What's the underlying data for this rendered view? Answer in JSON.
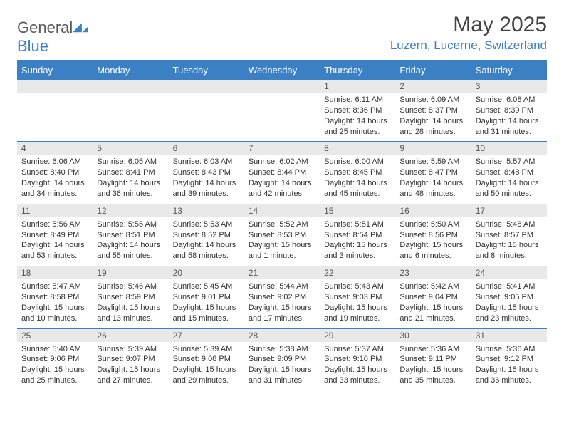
{
  "brand": {
    "name_a": "General",
    "name_b": "Blue"
  },
  "title": "May 2025",
  "location": "Luzern, Lucerne, Switzerland",
  "colors": {
    "accent": "#3b7fc4",
    "header_row_bg": "#3b7fc4",
    "header_row_text": "#ffffff",
    "daynum_bg": "#e9e9e9",
    "text": "#333333",
    "background": "#ffffff"
  },
  "typography": {
    "title_fontsize": 30,
    "location_fontsize": 17,
    "weekday_fontsize": 13,
    "daynum_fontsize": 12,
    "body_fontsize": 11,
    "font_family": "Arial"
  },
  "calendar": {
    "weekdays": [
      "Sunday",
      "Monday",
      "Tuesday",
      "Wednesday",
      "Thursday",
      "Friday",
      "Saturday"
    ],
    "weeks": [
      [
        {
          "day": "",
          "sunrise": "",
          "sunset": "",
          "daylight": ""
        },
        {
          "day": "",
          "sunrise": "",
          "sunset": "",
          "daylight": ""
        },
        {
          "day": "",
          "sunrise": "",
          "sunset": "",
          "daylight": ""
        },
        {
          "day": "",
          "sunrise": "",
          "sunset": "",
          "daylight": ""
        },
        {
          "day": "1",
          "sunrise": "Sunrise: 6:11 AM",
          "sunset": "Sunset: 8:36 PM",
          "daylight": "Daylight: 14 hours and 25 minutes."
        },
        {
          "day": "2",
          "sunrise": "Sunrise: 6:09 AM",
          "sunset": "Sunset: 8:37 PM",
          "daylight": "Daylight: 14 hours and 28 minutes."
        },
        {
          "day": "3",
          "sunrise": "Sunrise: 6:08 AM",
          "sunset": "Sunset: 8:39 PM",
          "daylight": "Daylight: 14 hours and 31 minutes."
        }
      ],
      [
        {
          "day": "4",
          "sunrise": "Sunrise: 6:06 AM",
          "sunset": "Sunset: 8:40 PM",
          "daylight": "Daylight: 14 hours and 34 minutes."
        },
        {
          "day": "5",
          "sunrise": "Sunrise: 6:05 AM",
          "sunset": "Sunset: 8:41 PM",
          "daylight": "Daylight: 14 hours and 36 minutes."
        },
        {
          "day": "6",
          "sunrise": "Sunrise: 6:03 AM",
          "sunset": "Sunset: 8:43 PM",
          "daylight": "Daylight: 14 hours and 39 minutes."
        },
        {
          "day": "7",
          "sunrise": "Sunrise: 6:02 AM",
          "sunset": "Sunset: 8:44 PM",
          "daylight": "Daylight: 14 hours and 42 minutes."
        },
        {
          "day": "8",
          "sunrise": "Sunrise: 6:00 AM",
          "sunset": "Sunset: 8:45 PM",
          "daylight": "Daylight: 14 hours and 45 minutes."
        },
        {
          "day": "9",
          "sunrise": "Sunrise: 5:59 AM",
          "sunset": "Sunset: 8:47 PM",
          "daylight": "Daylight: 14 hours and 48 minutes."
        },
        {
          "day": "10",
          "sunrise": "Sunrise: 5:57 AM",
          "sunset": "Sunset: 8:48 PM",
          "daylight": "Daylight: 14 hours and 50 minutes."
        }
      ],
      [
        {
          "day": "11",
          "sunrise": "Sunrise: 5:56 AM",
          "sunset": "Sunset: 8:49 PM",
          "daylight": "Daylight: 14 hours and 53 minutes."
        },
        {
          "day": "12",
          "sunrise": "Sunrise: 5:55 AM",
          "sunset": "Sunset: 8:51 PM",
          "daylight": "Daylight: 14 hours and 55 minutes."
        },
        {
          "day": "13",
          "sunrise": "Sunrise: 5:53 AM",
          "sunset": "Sunset: 8:52 PM",
          "daylight": "Daylight: 14 hours and 58 minutes."
        },
        {
          "day": "14",
          "sunrise": "Sunrise: 5:52 AM",
          "sunset": "Sunset: 8:53 PM",
          "daylight": "Daylight: 15 hours and 1 minute."
        },
        {
          "day": "15",
          "sunrise": "Sunrise: 5:51 AM",
          "sunset": "Sunset: 8:54 PM",
          "daylight": "Daylight: 15 hours and 3 minutes."
        },
        {
          "day": "16",
          "sunrise": "Sunrise: 5:50 AM",
          "sunset": "Sunset: 8:56 PM",
          "daylight": "Daylight: 15 hours and 6 minutes."
        },
        {
          "day": "17",
          "sunrise": "Sunrise: 5:48 AM",
          "sunset": "Sunset: 8:57 PM",
          "daylight": "Daylight: 15 hours and 8 minutes."
        }
      ],
      [
        {
          "day": "18",
          "sunrise": "Sunrise: 5:47 AM",
          "sunset": "Sunset: 8:58 PM",
          "daylight": "Daylight: 15 hours and 10 minutes."
        },
        {
          "day": "19",
          "sunrise": "Sunrise: 5:46 AM",
          "sunset": "Sunset: 8:59 PM",
          "daylight": "Daylight: 15 hours and 13 minutes."
        },
        {
          "day": "20",
          "sunrise": "Sunrise: 5:45 AM",
          "sunset": "Sunset: 9:01 PM",
          "daylight": "Daylight: 15 hours and 15 minutes."
        },
        {
          "day": "21",
          "sunrise": "Sunrise: 5:44 AM",
          "sunset": "Sunset: 9:02 PM",
          "daylight": "Daylight: 15 hours and 17 minutes."
        },
        {
          "day": "22",
          "sunrise": "Sunrise: 5:43 AM",
          "sunset": "Sunset: 9:03 PM",
          "daylight": "Daylight: 15 hours and 19 minutes."
        },
        {
          "day": "23",
          "sunrise": "Sunrise: 5:42 AM",
          "sunset": "Sunset: 9:04 PM",
          "daylight": "Daylight: 15 hours and 21 minutes."
        },
        {
          "day": "24",
          "sunrise": "Sunrise: 5:41 AM",
          "sunset": "Sunset: 9:05 PM",
          "daylight": "Daylight: 15 hours and 23 minutes."
        }
      ],
      [
        {
          "day": "25",
          "sunrise": "Sunrise: 5:40 AM",
          "sunset": "Sunset: 9:06 PM",
          "daylight": "Daylight: 15 hours and 25 minutes."
        },
        {
          "day": "26",
          "sunrise": "Sunrise: 5:39 AM",
          "sunset": "Sunset: 9:07 PM",
          "daylight": "Daylight: 15 hours and 27 minutes."
        },
        {
          "day": "27",
          "sunrise": "Sunrise: 5:39 AM",
          "sunset": "Sunset: 9:08 PM",
          "daylight": "Daylight: 15 hours and 29 minutes."
        },
        {
          "day": "28",
          "sunrise": "Sunrise: 5:38 AM",
          "sunset": "Sunset: 9:09 PM",
          "daylight": "Daylight: 15 hours and 31 minutes."
        },
        {
          "day": "29",
          "sunrise": "Sunrise: 5:37 AM",
          "sunset": "Sunset: 9:10 PM",
          "daylight": "Daylight: 15 hours and 33 minutes."
        },
        {
          "day": "30",
          "sunrise": "Sunrise: 5:36 AM",
          "sunset": "Sunset: 9:11 PM",
          "daylight": "Daylight: 15 hours and 35 minutes."
        },
        {
          "day": "31",
          "sunrise": "Sunrise: 5:36 AM",
          "sunset": "Sunset: 9:12 PM",
          "daylight": "Daylight: 15 hours and 36 minutes."
        }
      ]
    ]
  }
}
